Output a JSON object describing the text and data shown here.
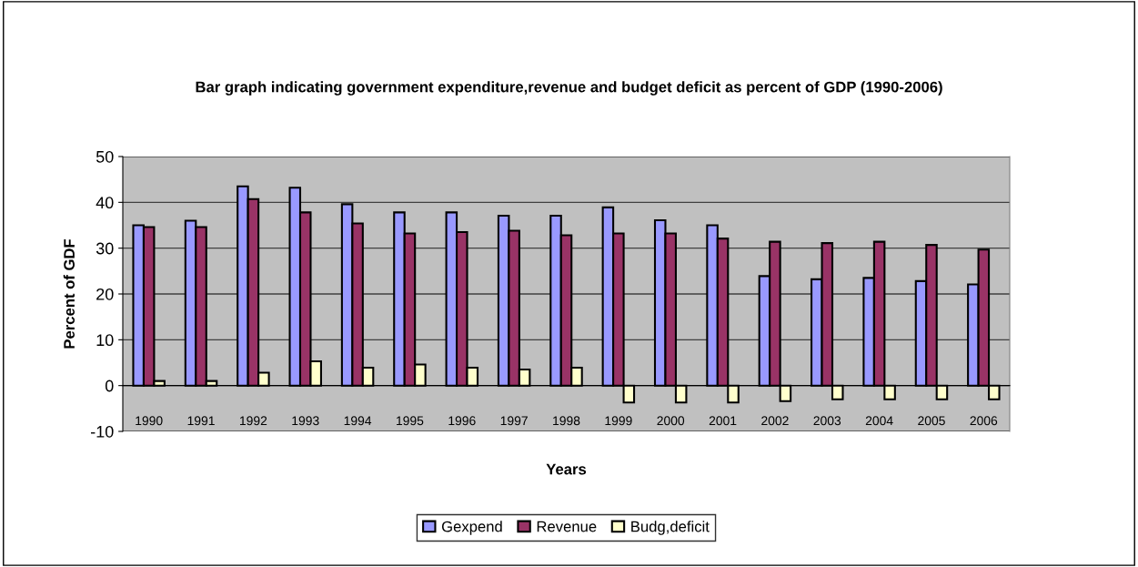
{
  "chart_data": {
    "type": "bar",
    "title": "Bar graph indicating government expenditure,revenue and budget deficit as percent of GDP (1990-2006)",
    "xlabel": "Years",
    "ylabel": "Percent of GDF",
    "categories": [
      "1990",
      "1991",
      "1992",
      "1993",
      "1994",
      "1995",
      "1996",
      "1997",
      "1998",
      "1999",
      "2000",
      "2001",
      "2002",
      "2003",
      "2004",
      "2005",
      "2006"
    ],
    "series": [
      {
        "name": "Gexpend",
        "color": "#9999ff",
        "values": [
          35,
          36,
          43.5,
          43.2,
          39.6,
          37.8,
          37.8,
          37.1,
          37.1,
          38.9,
          36.1,
          35,
          23.9,
          23.2,
          23.5,
          22.8,
          22.1
        ]
      },
      {
        "name": "Revenue",
        "color": "#993366",
        "values": [
          34.6,
          34.6,
          40.7,
          37.8,
          35.4,
          33.2,
          33.5,
          33.8,
          32.8,
          33.2,
          33.2,
          32.1,
          31.4,
          31.1,
          31.4,
          30.7,
          29.7
        ]
      },
      {
        "name": "Budg,deficit",
        "color": "#ffffcc",
        "values": [
          1,
          1,
          2.8,
          5.3,
          3.9,
          4.6,
          3.9,
          3.5,
          3.9,
          -3.7,
          -3.7,
          -3.7,
          -3.4,
          -3,
          -3,
          -3,
          -3
        ]
      }
    ],
    "ylim": [
      -10,
      50
    ],
    "yticks": [
      -10,
      0,
      10,
      20,
      30,
      40,
      50
    ],
    "grid": "y",
    "legend": "bottom"
  }
}
